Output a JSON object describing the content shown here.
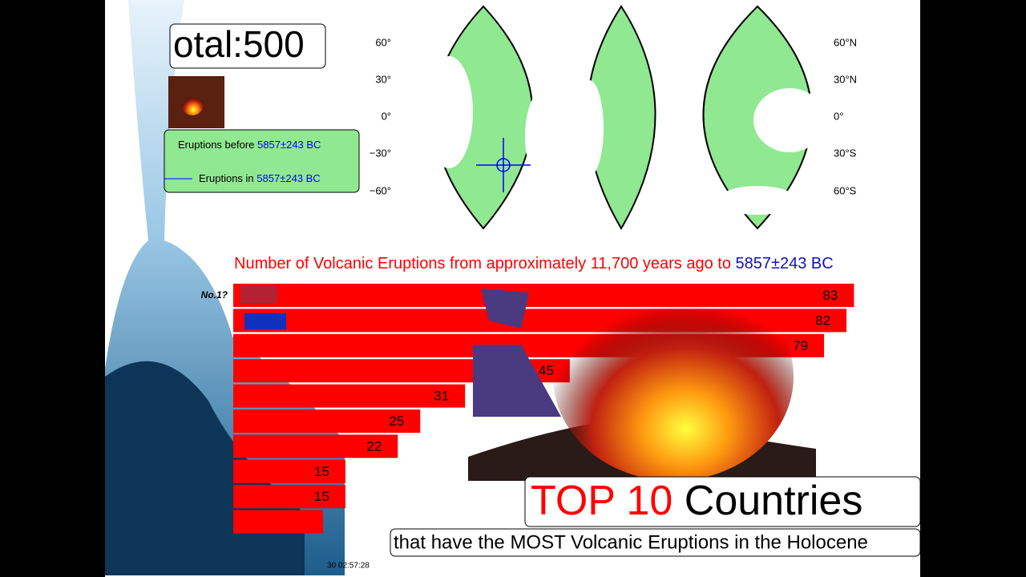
{
  "chart_data": {
    "type": "bar",
    "orientation": "horizontal",
    "title": "Number of Volcanic Eruptions from approximately 11,700 years ago to",
    "title_date": "5857±243 BC",
    "categories": [
      null,
      null,
      null,
      null,
      null,
      null,
      null,
      null,
      null,
      null
    ],
    "values": [
      83,
      82,
      79,
      45,
      31,
      25,
      22,
      15,
      15,
      12
    ],
    "color": "#ff0000",
    "rank_label": "No.1?"
  },
  "counter": "otal:500",
  "legend": [
    {
      "text": "Eruptions before",
      "date": "5857±243 BC"
    },
    {
      "text": "Eruptions in",
      "date": "5857±243 BC"
    }
  ],
  "map": {
    "left_labels": [
      "60°",
      "30°",
      "0°",
      "−30°",
      "−60°"
    ],
    "right_labels": [
      "60°N",
      "30°N",
      "0°",
      "30°S",
      "60°S"
    ]
  },
  "headline": {
    "highlight": "TOP 10",
    "rest": "Countries"
  },
  "subtitle": "that have the MOST Volcanic Eruptions in the Holocene",
  "timestamp": "30 02:57:28"
}
